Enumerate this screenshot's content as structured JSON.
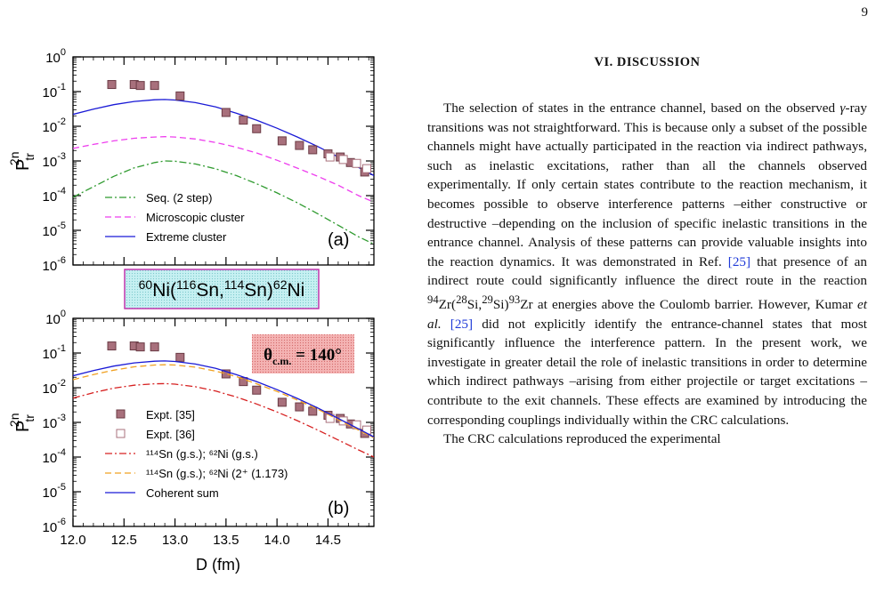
{
  "page_number": "9",
  "section": {
    "heading": "VI.   DISCUSSION"
  },
  "paragraphs": [
    "The selection of states in the entrance channel, based on the observed γ-ray transitions was not straightforward. This is because only a subset of the possible channels might have actually participated in the reaction via indirect pathways, such as inelastic excitations, rather than all the channels observed experimentally. If only certain states contribute to the reaction mechanism, it becomes possible to observe interference patterns –either constructive or destructive –depending on the inclusion of specific inelastic transitions in the entrance channel. Analysis of these patterns can provide valuable insights into the reaction dynamics. It was demonstrated in Ref. [25] that presence of an indirect route could significantly influence the direct route in the reaction ⁹⁴Zr(²⁸Si,²⁹Si)⁹³Zr at energies above the Coulomb barrier. However, Kumar et al. [25] did not explicitly identify the entrance-channel states that most significantly influence the interference pattern. In the present work, we investigate in greater detail the role of inelastic transitions in order to determine which indirect pathways –arising from either projectile or target excitations –contribute to the exit channels. These effects are examined by introducing the corresponding couplings individually within the CRC calculations.",
    "The CRC calculations reproduced the experimental"
  ],
  "figure": {
    "reaction_label": "⁶⁰Ni(¹¹⁶Sn,¹¹⁴Sn)⁶²Ni",
    "angle_label": "θc.m. = 140°",
    "colors": {
      "expt35": "#a8707c",
      "seq": "#2e9a2e",
      "micro": "#ee3fee",
      "extreme": "#1a1ad6",
      "gs": "#d62020",
      "excited": "#f0a020",
      "coherent": "#1a1ad6",
      "reaction_box": "#bfeef0",
      "angle_box": "#f2a0a0"
    }
  },
  "chart_data": [
    {
      "type": "line",
      "panel_label": "(a)",
      "xlabel": "",
      "ylabel": "P tr 2n",
      "xlim": [
        12.0,
        14.95
      ],
      "ylim": [
        1e-06,
        1
      ],
      "yscale": "log",
      "yticks": [
        "10^0",
        "10^-1",
        "10^-2",
        "10^-3",
        "10^-4",
        "10^-5",
        "10^-6"
      ],
      "legend_position": "bottom-left",
      "series": [
        {
          "name": "Seq. (2 step)",
          "style": "dashdot",
          "x": [
            12.0,
            12.2,
            12.4,
            12.6,
            12.8,
            12.9,
            13.0,
            13.2,
            13.4,
            13.6,
            13.8,
            14.0,
            14.2,
            14.4,
            14.6,
            14.8,
            14.95
          ],
          "y": [
            9e-05,
            0.00018,
            0.00036,
            0.00063,
            0.0009,
            0.001,
            0.00098,
            0.00082,
            0.00059,
            0.00038,
            0.00022,
            0.00012,
            6.2e-05,
            3e-05,
            1.4e-05,
            6.5e-06,
            4e-06
          ]
        },
        {
          "name": "Microscopic cluster",
          "style": "dashed",
          "x": [
            12.0,
            12.2,
            12.4,
            12.6,
            12.8,
            12.9,
            13.0,
            13.2,
            13.4,
            13.6,
            13.8,
            14.0,
            14.2,
            14.4,
            14.6,
            14.8,
            14.95
          ],
          "y": [
            0.0023,
            0.003,
            0.0038,
            0.0045,
            0.0049,
            0.005,
            0.0049,
            0.0043,
            0.0034,
            0.0025,
            0.0017,
            0.00105,
            0.00062,
            0.00036,
            0.0002,
            0.0001,
            6.5e-05
          ]
        },
        {
          "name": "Extreme cluster",
          "style": "solid",
          "x": [
            12.0,
            12.2,
            12.4,
            12.6,
            12.8,
            12.9,
            13.0,
            13.2,
            13.4,
            13.6,
            13.8,
            14.0,
            14.2,
            14.4,
            14.6,
            14.8,
            14.95
          ],
          "y": [
            0.022,
            0.031,
            0.042,
            0.052,
            0.058,
            0.059,
            0.057,
            0.048,
            0.036,
            0.024,
            0.015,
            0.0088,
            0.0049,
            0.0026,
            0.0013,
            0.00065,
            0.00038
          ]
        },
        {
          "name": "Expt. [35]",
          "style": "marker-filled",
          "x": [
            12.38,
            12.6,
            12.66,
            12.8,
            13.05,
            13.5,
            13.67,
            13.8,
            14.05,
            14.22,
            14.35,
            14.5,
            14.62,
            14.72,
            14.86
          ],
          "y": [
            0.16,
            0.16,
            0.15,
            0.15,
            0.075,
            0.025,
            0.015,
            0.0085,
            0.0038,
            0.0028,
            0.0021,
            0.0016,
            0.0013,
            0.0009,
            0.00048
          ]
        },
        {
          "name": "Expt. [36]",
          "style": "marker-open",
          "x": [
            14.52,
            14.65,
            14.78,
            14.88
          ],
          "y": [
            0.0013,
            0.0011,
            0.00085,
            0.0006
          ]
        }
      ]
    },
    {
      "type": "line",
      "panel_label": "(b)",
      "xlabel": "D (fm)",
      "ylabel": "P tr 2n",
      "xlim": [
        12.0,
        14.95
      ],
      "ylim": [
        1e-06,
        1
      ],
      "yscale": "log",
      "xticks": [
        "12.0",
        "12.5",
        "13.0",
        "13.5",
        "14.0",
        "14.5"
      ],
      "yticks": [
        "10^0",
        "10^-1",
        "10^-2",
        "10^-3",
        "10^-4",
        "10^-5",
        "10^-6"
      ],
      "legend_position": "bottom-left",
      "series": [
        {
          "name": "Expt. [35]",
          "style": "marker-filled",
          "x": [
            12.38,
            12.6,
            12.66,
            12.8,
            13.05,
            13.5,
            13.67,
            13.8,
            14.05,
            14.22,
            14.35,
            14.5,
            14.62,
            14.72,
            14.86
          ],
          "y": [
            0.16,
            0.16,
            0.15,
            0.15,
            0.075,
            0.025,
            0.015,
            0.0085,
            0.0038,
            0.0028,
            0.0021,
            0.0016,
            0.0013,
            0.0009,
            0.00048
          ]
        },
        {
          "name": "Expt. [36]",
          "style": "marker-open",
          "x": [
            14.52,
            14.65,
            14.78,
            14.88
          ],
          "y": [
            0.0013,
            0.0011,
            0.00085,
            0.0006
          ]
        },
        {
          "name": "¹¹⁴Sn (g.s.); ⁶²Ni (g.s.)",
          "style": "dashdot",
          "x": [
            12.0,
            12.2,
            12.4,
            12.6,
            12.8,
            12.9,
            13.0,
            13.2,
            13.4,
            13.6,
            13.8,
            14.0,
            14.2,
            14.4,
            14.6,
            14.8,
            14.95
          ],
          "y": [
            0.005,
            0.0072,
            0.0097,
            0.0118,
            0.013,
            0.0131,
            0.0127,
            0.0107,
            0.008,
            0.0054,
            0.0034,
            0.002,
            0.00112,
            0.0006,
            0.00031,
            0.00016,
            0.0001
          ]
        },
        {
          "name": "¹¹⁴Sn (g.s.); ⁶²Ni (2⁺ (1.173)",
          "style": "dashed",
          "x": [
            12.0,
            12.2,
            12.4,
            12.6,
            12.8,
            12.9,
            13.0,
            13.2,
            13.4,
            13.6,
            13.8,
            14.0,
            14.2,
            14.4,
            14.6,
            14.8,
            14.95
          ],
          "y": [
            0.017,
            0.024,
            0.032,
            0.04,
            0.045,
            0.046,
            0.045,
            0.039,
            0.03,
            0.021,
            0.013,
            0.0078,
            0.0044,
            0.0024,
            0.0012,
            0.0006,
            0.00036
          ]
        },
        {
          "name": "Coherent sum",
          "style": "solid",
          "x": [
            12.0,
            12.2,
            12.4,
            12.6,
            12.8,
            12.9,
            13.0,
            13.2,
            13.4,
            13.6,
            13.8,
            14.0,
            14.2,
            14.4,
            14.6,
            14.8,
            14.95
          ],
          "y": [
            0.022,
            0.031,
            0.042,
            0.052,
            0.058,
            0.059,
            0.057,
            0.048,
            0.036,
            0.024,
            0.015,
            0.0088,
            0.0049,
            0.0026,
            0.0013,
            0.00065,
            0.00038
          ]
        }
      ]
    }
  ]
}
